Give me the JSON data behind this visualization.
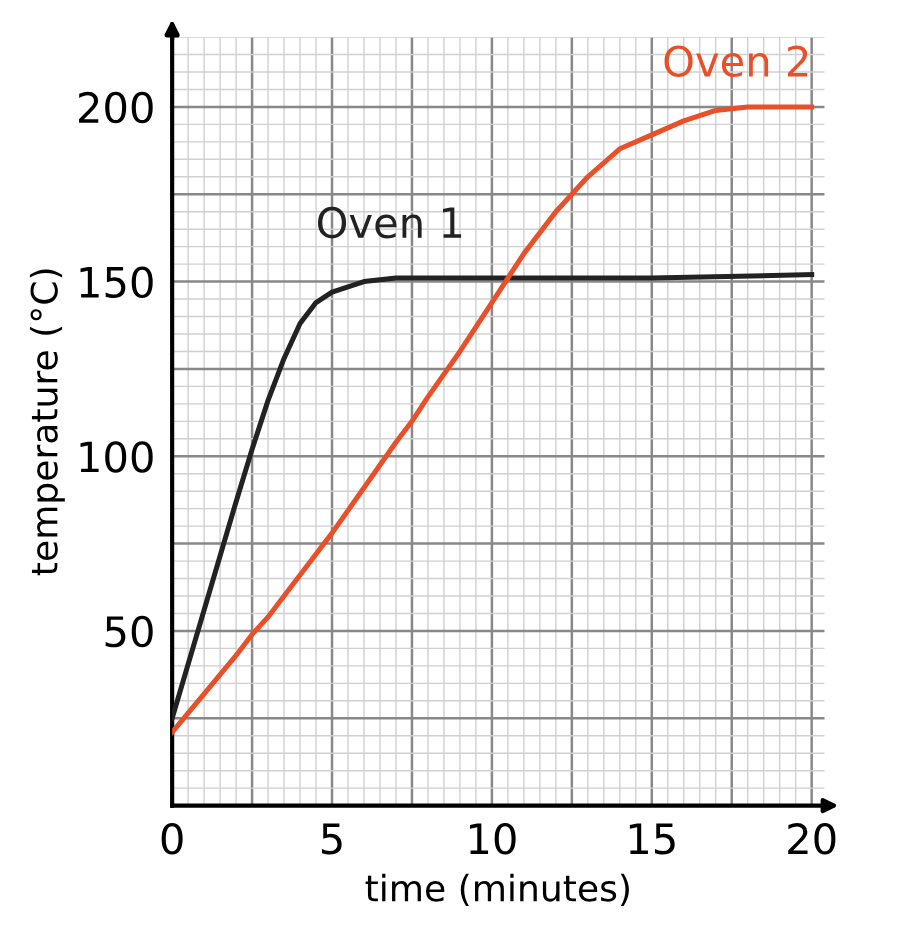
{
  "chart_data": {
    "type": "line",
    "xlabel": "time (minutes)",
    "ylabel": "temperature (°C)",
    "xlim": [
      0,
      20.4
    ],
    "ylim": [
      0,
      220
    ],
    "xticks": [
      0,
      5,
      10,
      15,
      20
    ],
    "yticks": [
      50,
      100,
      150,
      200
    ],
    "grid": true,
    "legend": false,
    "line_style": "solid",
    "marker": "none",
    "series": [
      {
        "name": "Oven 1",
        "color": "#222222",
        "x": [
          0,
          1,
          2,
          2.5,
          3,
          3.5,
          4,
          4.5,
          5,
          6,
          7,
          10,
          15,
          20
        ],
        "values": [
          25,
          56,
          87,
          102,
          116,
          128,
          138,
          144,
          147,
          150,
          151,
          151,
          151,
          152
        ]
      },
      {
        "name": "Oven 2",
        "color": "#e8502a",
        "x": [
          0,
          1,
          2,
          2.5,
          3,
          4,
          5,
          6,
          7,
          7.5,
          8,
          9,
          10,
          11,
          12,
          12.5,
          13,
          14,
          15,
          16,
          17,
          18,
          19,
          20
        ],
        "values": [
          21,
          32,
          43,
          49,
          54,
          66,
          78,
          91,
          104,
          110,
          117,
          130,
          144,
          158,
          170,
          175,
          180,
          188,
          192,
          196,
          199,
          200,
          200,
          200
        ]
      }
    ]
  }
}
